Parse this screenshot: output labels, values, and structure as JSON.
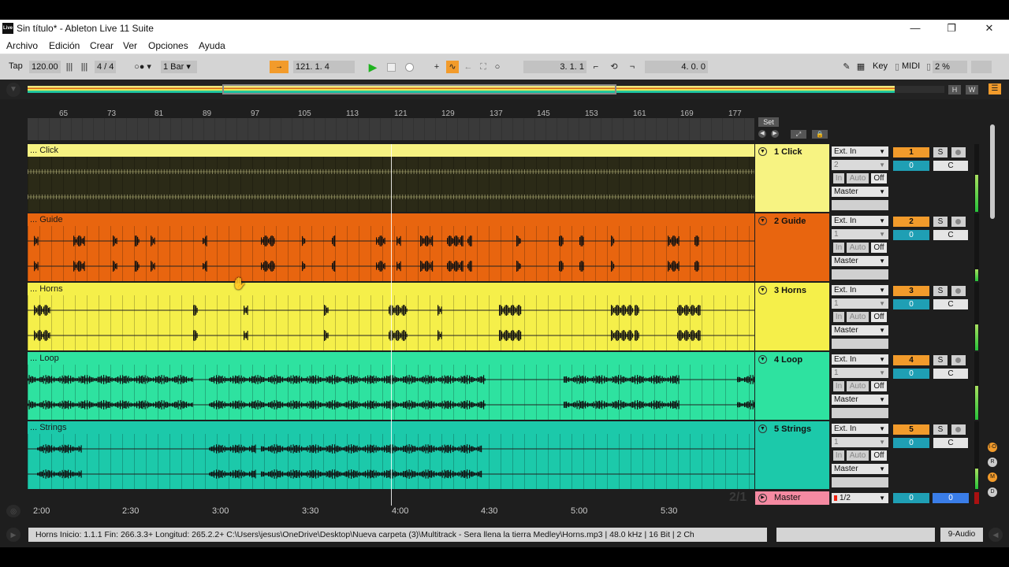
{
  "window": {
    "title": "Sin título* - Ableton Live 11 Suite",
    "icon_label": "Live",
    "controls": {
      "minimize": "—",
      "maximize": "❐",
      "close": "✕"
    }
  },
  "menu": [
    "Archivo",
    "Edición",
    "Crear",
    "Ver",
    "Opciones",
    "Ayuda"
  ],
  "transport": {
    "tap": "Tap",
    "tempo": "120.00",
    "time_signature": "4 / 4",
    "quantize": "1 Bar",
    "position": "121.  1.  4",
    "loop_start": "3.  1.  1",
    "loop_length": "4.  0.  0",
    "key_label": "Key",
    "midi_label": "MIDI",
    "cpu": "2 %",
    "accent_color": "#f29b2b"
  },
  "overview": {
    "h_label": "H",
    "w_label": "W"
  },
  "ruler": {
    "bars": [
      "65",
      "73",
      "81",
      "89",
      "97",
      "105",
      "113",
      "121",
      "129",
      "137",
      "145",
      "153",
      "161",
      "169",
      "177"
    ],
    "set_label": "Set"
  },
  "tracks": [
    {
      "clip": "... Click",
      "name": "1 Click",
      "number": "1",
      "input": "Ext. In",
      "channel": "2",
      "output": "Master",
      "vol": "0",
      "pan": "C",
      "color": "#f7f382",
      "clip_color": "#f7f382",
      "body_color": "#2b2a17",
      "meter": 0.55
    },
    {
      "clip": "... Guide",
      "name": "2 Guide",
      "number": "2",
      "input": "Ext. In",
      "channel": "1",
      "output": "Master",
      "vol": "0",
      "pan": "C",
      "color": "#e8650f",
      "clip_color": "#e8650f",
      "body_color": "#e8650f",
      "meter": 0.18
    },
    {
      "clip": "... Horns",
      "name": "3 Horns",
      "number": "3",
      "input": "Ext. In",
      "channel": "1",
      "output": "Master",
      "vol": "0",
      "pan": "C",
      "color": "#f5ef4a",
      "clip_color": "#f5ef4a",
      "body_color": "#f5ef4a",
      "meter": 0.38
    },
    {
      "clip": "... Loop",
      "name": "4 Loop",
      "number": "4",
      "input": "Ext. In",
      "channel": "1",
      "output": "Master",
      "vol": "0",
      "pan": "C",
      "color": "#2ee2a0",
      "clip_color": "#2ee2a0",
      "body_color": "#2ee2a0",
      "meter": 0.5
    },
    {
      "clip": "... Strings",
      "name": "5 Strings",
      "number": "5",
      "input": "Ext. In",
      "channel": "1",
      "output": "Master",
      "vol": "0",
      "pan": "C",
      "color": "#1cc9aa",
      "clip_color": "#1cc9aa",
      "body_color": "#1cc9aa",
      "meter": 0.3
    }
  ],
  "io_buttons": {
    "in": "In",
    "auto": "Auto",
    "off": "Off"
  },
  "track_buttons": {
    "solo": "S"
  },
  "master": {
    "name": "Master",
    "input": "1/2",
    "vol": "0",
    "pan": "0",
    "zoom_label": "2/1"
  },
  "time_ruler": [
    "2:00",
    "2:30",
    "3:00",
    "3:30",
    "4:00",
    "4:30",
    "5:00",
    "5:30"
  ],
  "status": {
    "text": "Horns  Inicio: 1.1.1  Fin: 266.3.3+  Longitud: 265.2.2+  C:\\Users\\jesus\\OneDrive\\Desktop\\Nueva carpeta (3)\\Multitrack - Sera llena la tierra Medley\\Horns.mp3 | 48.0 kHz | 16 Bit | 2 Ch",
    "device": "9-Audio"
  },
  "side_buttons": [
    "I·O",
    "R",
    "M",
    "D"
  ]
}
